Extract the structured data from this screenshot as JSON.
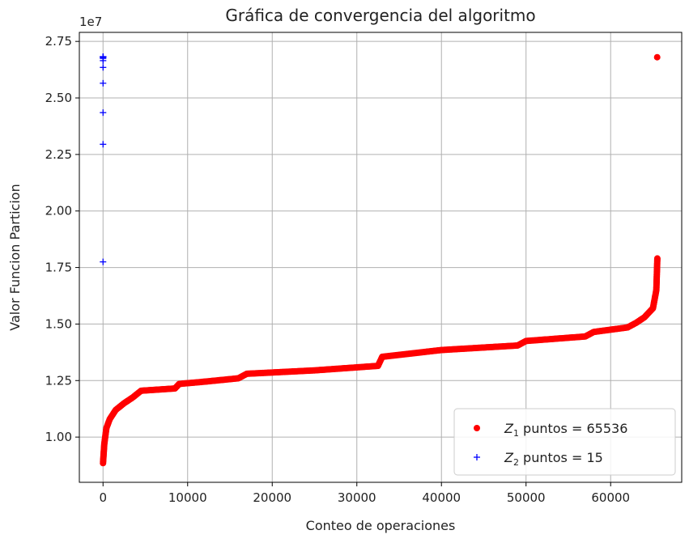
{
  "chart_data": {
    "type": "scatter",
    "title": "Gráfica de convergencia del algoritmo",
    "xlabel": "Conteo de operaciones",
    "ylabel": "Valor Funcion Particion",
    "y_offset_label": "1e7",
    "xlim": [
      -2800,
      68400
    ],
    "ylim": [
      8000000,
      27900000
    ],
    "x_ticks": [
      0,
      10000,
      20000,
      30000,
      40000,
      50000,
      60000
    ],
    "x_tick_labels": [
      "0",
      "10000",
      "20000",
      "30000",
      "40000",
      "50000",
      "60000"
    ],
    "y_ticks": [
      10000000,
      12500000,
      15000000,
      17500000,
      20000000,
      22500000,
      25000000,
      27500000
    ],
    "y_tick_labels": [
      "1.00",
      "1.25",
      "1.50",
      "1.75",
      "2.00",
      "2.25",
      "2.50",
      "2.75"
    ],
    "grid": true,
    "legend_position": "bottom-right",
    "series": [
      {
        "name_prefix": "Z",
        "name_subscript": "1",
        "name_suffix": " puntos = 65536",
        "marker": "circle",
        "color": "#ff0000",
        "count": 65536,
        "curve": [
          [
            0,
            8850000
          ],
          [
            150,
            9700000
          ],
          [
            400,
            10400000
          ],
          [
            800,
            10800000
          ],
          [
            1500,
            11200000
          ],
          [
            2500,
            11500000
          ],
          [
            3500,
            11750000
          ],
          [
            4500,
            12050000
          ],
          [
            8500,
            12150000
          ],
          [
            9000,
            12350000
          ],
          [
            12000,
            12450000
          ],
          [
            16000,
            12600000
          ],
          [
            17000,
            12800000
          ],
          [
            25000,
            12950000
          ],
          [
            32500,
            13150000
          ],
          [
            33000,
            13550000
          ],
          [
            40000,
            13850000
          ],
          [
            49000,
            14050000
          ],
          [
            50000,
            14250000
          ],
          [
            57000,
            14450000
          ],
          [
            58000,
            14650000
          ],
          [
            62000,
            14850000
          ],
          [
            63000,
            15050000
          ],
          [
            64000,
            15300000
          ],
          [
            65000,
            15700000
          ],
          [
            65400,
            16500000
          ],
          [
            65520,
            17900000
          ]
        ],
        "outliers": [
          [
            65500,
            26800000
          ]
        ]
      },
      {
        "name_prefix": "Z",
        "name_subscript": "2",
        "name_suffix": " puntos = 15",
        "marker": "plus",
        "color": "#0000ff",
        "count": 15,
        "x": [
          0,
          1,
          2,
          3,
          4,
          5,
          6,
          7,
          8,
          9,
          10,
          11,
          12,
          13,
          14
        ],
        "y": [
          17750000,
          22950000,
          24350000,
          25650000,
          26350000,
          26650000,
          26750000,
          26800000,
          26810000,
          26815000,
          26818000,
          26820000,
          26822000,
          26823000,
          26824000
        ]
      }
    ]
  }
}
